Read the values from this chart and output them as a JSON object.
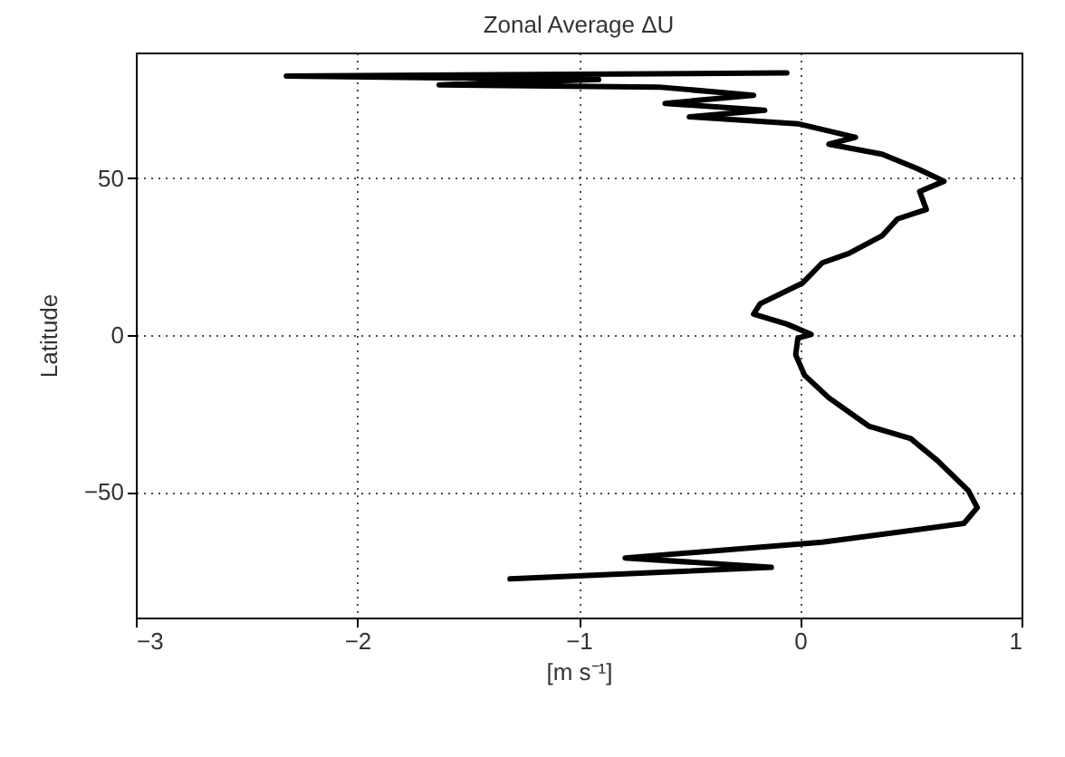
{
  "chart_data": {
    "type": "line",
    "title": "Zonal Average ΔU",
    "xlabel": "[m s⁻¹]",
    "ylabel": "Latitude",
    "xlim": [
      -3,
      1
    ],
    "xticks": [
      -3,
      -2,
      -1,
      0,
      1
    ],
    "ylim": [
      -90,
      90
    ],
    "yticks": [
      -50,
      0,
      50
    ],
    "grid": true,
    "line_style": "solid",
    "series": [
      {
        "color": "#000000",
        "x": [
          -1.31,
          -0.13,
          -0.79,
          0.1,
          0.74,
          0.8,
          0.76,
          0.62,
          0.5,
          0.31,
          0.13,
          0.02,
          -0.02,
          -0.01,
          0.05,
          -0.06,
          -0.21,
          -0.18,
          0.01,
          0.1,
          0.22,
          0.37,
          0.44,
          0.57,
          0.54,
          0.65,
          0.53,
          0.37,
          0.13,
          0.25,
          -0.01,
          -0.5,
          -0.16,
          -0.61,
          -0.21,
          -0.64,
          -1.63,
          -0.91,
          -2.32,
          -0.06
        ],
        "values": [
          -77.7,
          -74,
          -71,
          -66,
          -60,
          -55,
          -49.6,
          -40,
          -33,
          -29,
          -20,
          -12.8,
          -6.3,
          -1,
          0.2,
          3.5,
          6.7,
          10,
          16.5,
          23,
          26,
          31.6,
          37,
          40,
          45.7,
          49,
          53,
          57.6,
          60.8,
          63,
          67.3,
          69.5,
          71.6,
          73.8,
          76.4,
          79,
          79.7,
          81.4,
          82.5,
          83.5
        ]
      }
    ]
  }
}
